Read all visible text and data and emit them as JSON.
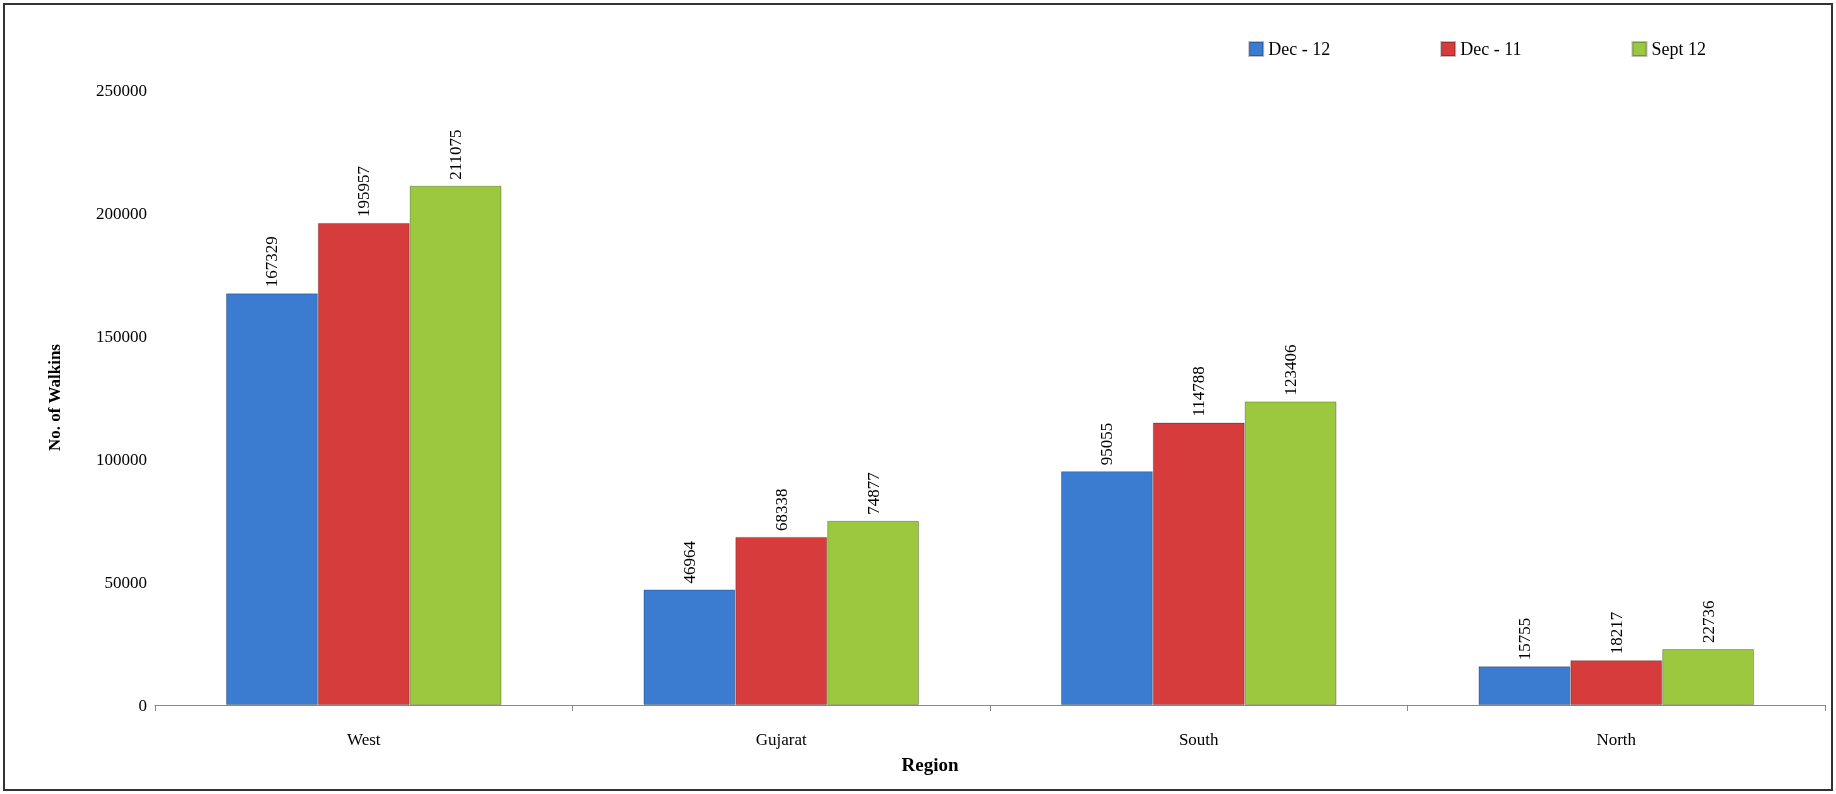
{
  "chart_data": {
    "type": "bar",
    "xlabel": "Region",
    "ylabel": "No. of Walkins",
    "categories": [
      "West",
      "Gujarat",
      "South",
      "North"
    ],
    "series": [
      {
        "name": "Dec - 12",
        "color": "#3b7bd0",
        "values": [
          167329,
          46964,
          95055,
          15755
        ]
      },
      {
        "name": "Dec - 11",
        "color": "#d63c3c",
        "values": [
          195957,
          68338,
          114788,
          18217
        ]
      },
      {
        "name": "Sept 12",
        "color": "#9bc83f",
        "values": [
          211075,
          74877,
          123406,
          22736
        ]
      }
    ],
    "ylim": [
      0,
      250000
    ],
    "yticks": [
      0,
      50000,
      100000,
      150000,
      200000,
      250000
    ],
    "grid": false,
    "legend": "top right",
    "data_labels": true
  }
}
